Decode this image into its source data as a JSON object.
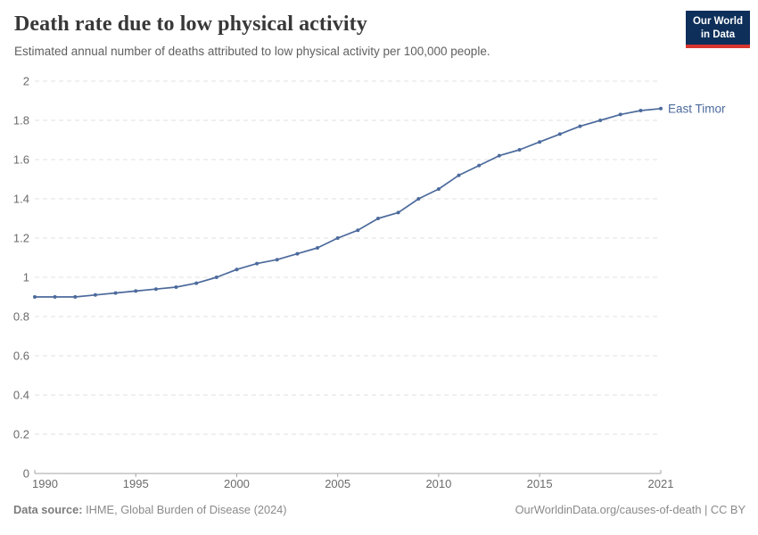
{
  "header": {
    "title": "Death rate due to low physical activity",
    "subtitle": "Estimated annual number of deaths attributed to low physical activity per 100,000 people.",
    "logo": {
      "line1": "Our World",
      "line2": "in Data",
      "bg_color": "#0e2f5a",
      "stripe_color": "#d8352f"
    }
  },
  "chart_data": {
    "type": "line",
    "title": "Death rate due to low physical activity",
    "xlabel": "",
    "ylabel": "",
    "xlim": [
      1990,
      2021
    ],
    "ylim": [
      0,
      2
    ],
    "x_ticks": [
      1990,
      1995,
      2000,
      2005,
      2010,
      2015,
      2021
    ],
    "y_ticks": [
      0,
      0.2,
      0.4,
      0.6,
      0.8,
      1,
      1.2,
      1.4,
      1.6,
      1.8,
      2
    ],
    "grid": "horizontal-dashed",
    "gridline_color": "#e0e0e0",
    "axis_color": "#a3a3a3",
    "tick_label_color": "#6b6b6b",
    "x": [
      1990,
      1991,
      1992,
      1993,
      1994,
      1995,
      1996,
      1997,
      1998,
      1999,
      2000,
      2001,
      2002,
      2003,
      2004,
      2005,
      2006,
      2007,
      2008,
      2009,
      2010,
      2011,
      2012,
      2013,
      2014,
      2015,
      2016,
      2017,
      2018,
      2019,
      2020,
      2021
    ],
    "series": [
      {
        "name": "East Timor",
        "color": "#4c6a9c",
        "values": [
          0.9,
          0.9,
          0.9,
          0.91,
          0.92,
          0.93,
          0.94,
          0.95,
          0.97,
          1.0,
          1.04,
          1.07,
          1.09,
          1.12,
          1.15,
          1.2,
          1.24,
          1.3,
          1.33,
          1.4,
          1.45,
          1.52,
          1.57,
          1.62,
          1.65,
          1.69,
          1.73,
          1.77,
          1.8,
          1.83,
          1.85,
          1.86
        ]
      }
    ],
    "legend_position": "end-of-line-label"
  },
  "footer": {
    "datasource_label": "Data source:",
    "datasource_value": " IHME, Global Burden of Disease (2024)",
    "credit_link": "OurWorldinData.org/causes-of-death",
    "credit_suffix": " | CC BY"
  }
}
